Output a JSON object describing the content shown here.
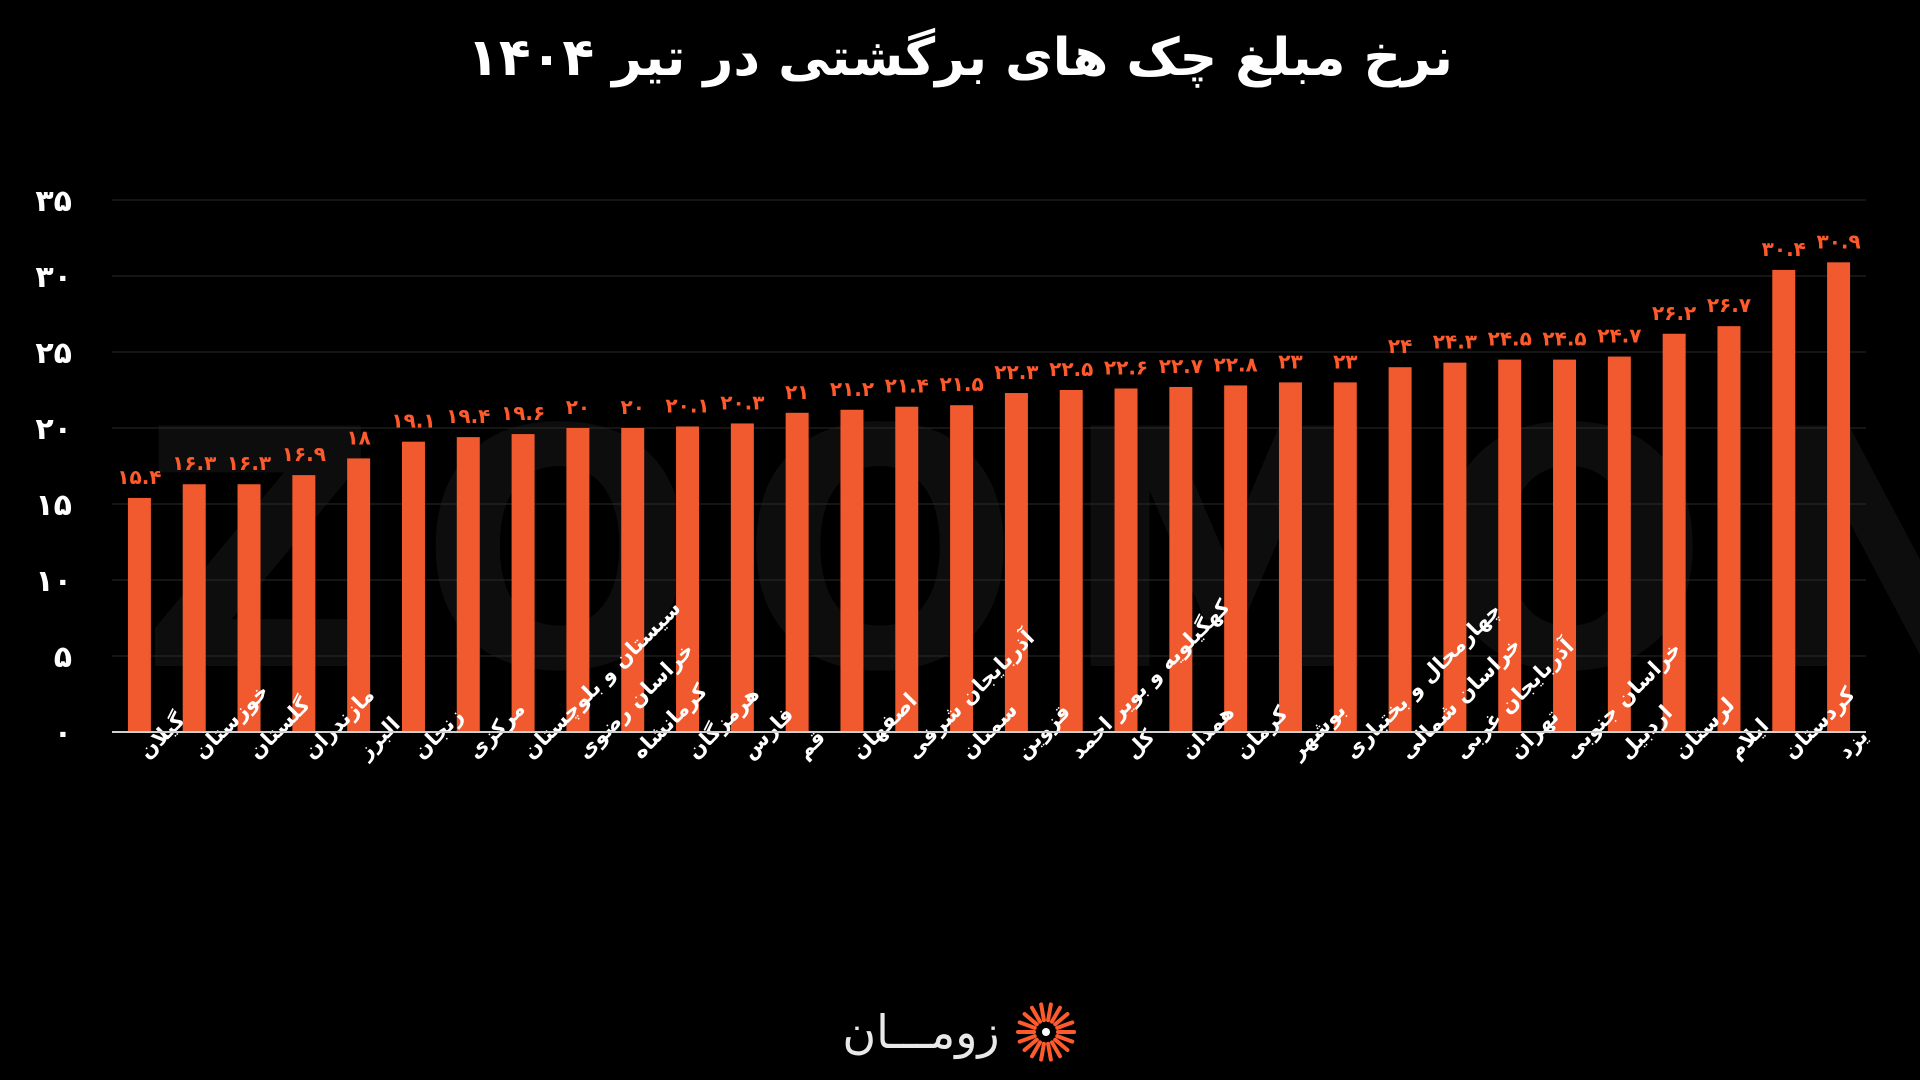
{
  "chart_data": {
    "type": "bar",
    "title": "نرخ مبلغ چک های برگشتی در تیر ۱۴۰۴",
    "xlabel": "",
    "ylabel": "",
    "ylim": [
      0,
      35
    ],
    "yticks": [
      0,
      5,
      10,
      15,
      20,
      25,
      30,
      35
    ],
    "ytick_labels": [
      "۰",
      "۵",
      "۱۰",
      "۱۵",
      "۲۰",
      "۲۵",
      "۳۰",
      "۳۵"
    ],
    "bar_color": "#f05a2e",
    "label_color": "#ff5a2c",
    "grid": true,
    "categories": [
      "گیلان",
      "خوزستان",
      "گلستان",
      "مازندران",
      "البرز",
      "زنجان",
      "مرکزی",
      "سیستان و بلوچستان",
      "خراسان رضوی",
      "کرمانشاه",
      "هرمزگان",
      "فارس",
      "قم",
      "اصفهان",
      "آذربایجان شرقی",
      "سمنان",
      "قزوین",
      "کهگیلویه و بویر احمد",
      "کل",
      "همدان",
      "کرمان",
      "بوشهر",
      "چهارمحال و بختیاری",
      "خراسان شمالی",
      "آذربایجان غربی",
      "تهران",
      "خراسان جنوبی",
      "اردبیل",
      "لرستان",
      "ایلام",
      "کردستان",
      "یزد"
    ],
    "values": [
      15.4,
      16.3,
      16.3,
      16.9,
      18,
      19.1,
      19.4,
      19.6,
      20,
      20,
      20.1,
      20.3,
      21,
      21.2,
      21.4,
      21.5,
      22.3,
      22.5,
      22.6,
      22.7,
      22.8,
      23,
      23,
      24,
      24.3,
      24.5,
      24.5,
      24.7,
      26.2,
      26.7,
      30.4,
      30.9
    ],
    "value_labels": [
      "۱۵.۴",
      "۱۶.۳",
      "۱۶.۳",
      "۱۶.۹",
      "۱۸",
      "۱۹.۱",
      "۱۹.۴",
      "۱۹.۶",
      "۲۰",
      "۲۰",
      "۲۰.۱",
      "۲۰.۳",
      "۲۱",
      "۲۱.۲",
      "۲۱.۴",
      "۲۱.۵",
      "۲۲.۳",
      "۲۲.۵",
      "۲۲.۶",
      "۲۲.۷",
      "۲۲.۸",
      "۲۳",
      "۲۳",
      "۲۴",
      "۲۴.۳",
      "۲۴.۵",
      "۲۴.۵",
      "۲۴.۷",
      "۲۶.۲",
      "۲۶.۷",
      "۳۰.۴",
      "۳۰.۹"
    ]
  },
  "watermark": "ZOOMON",
  "brand": {
    "name": "زومـــان",
    "accent": "#ff5a2c"
  }
}
